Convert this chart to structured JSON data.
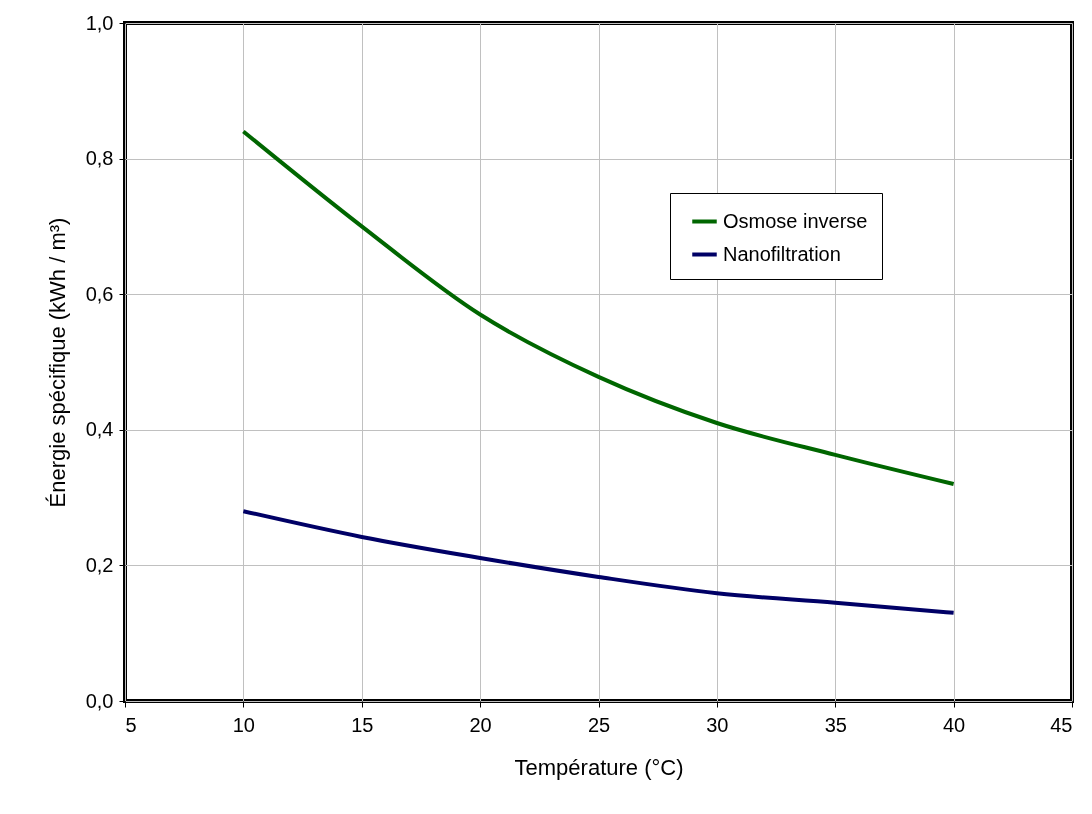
{
  "chart_data": {
    "type": "line",
    "xlabel": "Température (°C)",
    "ylabel": "Énergie spécifique (kWh / m³)",
    "xlim": [
      5,
      45
    ],
    "xticks": [
      5,
      10,
      15,
      20,
      25,
      30,
      35,
      40,
      45
    ],
    "ylim": [
      0,
      1
    ],
    "yticks": [
      {
        "value": 0,
        "label": "0,0"
      },
      {
        "value": 0.2,
        "label": "0,2"
      },
      {
        "value": 0.4,
        "label": "0,4"
      },
      {
        "value": 0.6,
        "label": "0,6"
      },
      {
        "value": 0.8,
        "label": "0,8"
      },
      {
        "value": 1,
        "label": "1,0"
      }
    ],
    "x": [
      10,
      15,
      20,
      25,
      30,
      35,
      40
    ],
    "series": [
      {
        "name": "Osmose inverse",
        "color": "#006600",
        "values": [
          0.84,
          0.7,
          0.57,
          0.478,
          0.41,
          0.363,
          0.32
        ]
      },
      {
        "name": "Nanofiltration",
        "color": "#000066",
        "values": [
          0.28,
          0.242,
          0.211,
          0.183,
          0.159,
          0.145,
          0.13
        ]
      }
    ],
    "grid": true,
    "legend": "top right",
    "marker": "none",
    "line_style": "solid"
  }
}
